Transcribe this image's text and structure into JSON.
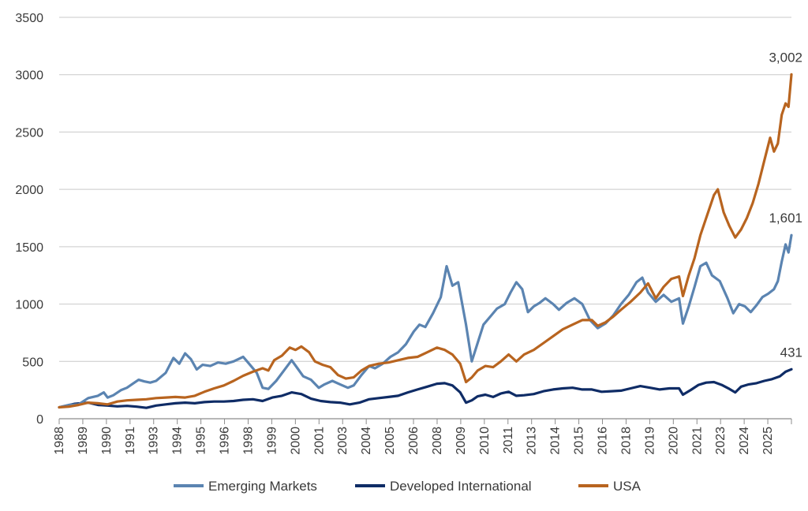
{
  "chart_data": {
    "type": "line",
    "title": "",
    "xlabel": "",
    "ylabel": "",
    "ylim": [
      0,
      3500
    ],
    "y_ticks": [
      0,
      500,
      1000,
      1500,
      2000,
      2500,
      3000,
      3500
    ],
    "x_tick_labels": [
      "1988",
      "1989",
      "1990",
      "1991",
      "1993",
      "1994",
      "1995",
      "1996",
      "1998",
      "1999",
      "2000",
      "2001",
      "2003",
      "2004",
      "2005",
      "2006",
      "2008",
      "2009",
      "2010",
      "2011",
      "2013",
      "2014",
      "2015",
      "2016",
      "2018",
      "2019",
      "2020",
      "2021",
      "2023",
      "2024",
      "2025"
    ],
    "x_range": [
      1988.0,
      2025.8
    ],
    "grid": true,
    "legend_position": "bottom",
    "series": [
      {
        "name": "Emerging Markets",
        "color": "#5b84b1",
        "end_label": "1,601",
        "points": [
          [
            1988.0,
            100
          ],
          [
            1988.5,
            120
          ],
          [
            1989.0,
            125
          ],
          [
            1989.5,
            180
          ],
          [
            1990.0,
            200
          ],
          [
            1990.3,
            230
          ],
          [
            1990.5,
            185
          ],
          [
            1990.8,
            205
          ],
          [
            1991.2,
            250
          ],
          [
            1991.5,
            270
          ],
          [
            1991.8,
            305
          ],
          [
            1992.1,
            340
          ],
          [
            1992.4,
            325
          ],
          [
            1992.7,
            315
          ],
          [
            1993.0,
            330
          ],
          [
            1993.5,
            400
          ],
          [
            1993.9,
            530
          ],
          [
            1994.2,
            480
          ],
          [
            1994.5,
            570
          ],
          [
            1994.8,
            520
          ],
          [
            1995.1,
            430
          ],
          [
            1995.4,
            470
          ],
          [
            1995.8,
            460
          ],
          [
            1996.2,
            490
          ],
          [
            1996.6,
            480
          ],
          [
            1997.0,
            500
          ],
          [
            1997.5,
            540
          ],
          [
            1997.8,
            480
          ],
          [
            1998.2,
            400
          ],
          [
            1998.5,
            270
          ],
          [
            1998.8,
            260
          ],
          [
            1999.2,
            330
          ],
          [
            1999.6,
            420
          ],
          [
            2000.0,
            510
          ],
          [
            2000.3,
            440
          ],
          [
            2000.6,
            370
          ],
          [
            2001.0,
            340
          ],
          [
            2001.4,
            270
          ],
          [
            2001.7,
            300
          ],
          [
            2002.1,
            330
          ],
          [
            2002.5,
            300
          ],
          [
            2002.9,
            270
          ],
          [
            2003.2,
            290
          ],
          [
            2003.6,
            380
          ],
          [
            2004.0,
            460
          ],
          [
            2004.3,
            440
          ],
          [
            2004.7,
            480
          ],
          [
            2005.1,
            540
          ],
          [
            2005.5,
            580
          ],
          [
            2005.9,
            650
          ],
          [
            2006.3,
            760
          ],
          [
            2006.6,
            820
          ],
          [
            2006.9,
            800
          ],
          [
            2007.3,
            920
          ],
          [
            2007.7,
            1060
          ],
          [
            2008.0,
            1330
          ],
          [
            2008.3,
            1160
          ],
          [
            2008.6,
            1190
          ],
          [
            2009.0,
            820
          ],
          [
            2009.3,
            500
          ],
          [
            2009.6,
            660
          ],
          [
            2009.9,
            820
          ],
          [
            2010.3,
            900
          ],
          [
            2010.6,
            960
          ],
          [
            2011.0,
            1000
          ],
          [
            2011.3,
            1100
          ],
          [
            2011.6,
            1190
          ],
          [
            2011.9,
            1130
          ],
          [
            2012.2,
            930
          ],
          [
            2012.5,
            980
          ],
          [
            2012.8,
            1010
          ],
          [
            2013.1,
            1050
          ],
          [
            2013.5,
            1000
          ],
          [
            2013.8,
            950
          ],
          [
            2014.2,
            1010
          ],
          [
            2014.6,
            1050
          ],
          [
            2015.0,
            1000
          ],
          [
            2015.4,
            860
          ],
          [
            2015.8,
            790
          ],
          [
            2016.2,
            830
          ],
          [
            2016.6,
            900
          ],
          [
            2017.0,
            1000
          ],
          [
            2017.4,
            1080
          ],
          [
            2017.8,
            1190
          ],
          [
            2018.1,
            1230
          ],
          [
            2018.4,
            1100
          ],
          [
            2018.8,
            1020
          ],
          [
            2019.2,
            1080
          ],
          [
            2019.6,
            1020
          ],
          [
            2020.0,
            1050
          ],
          [
            2020.2,
            830
          ],
          [
            2020.5,
            980
          ],
          [
            2020.8,
            1150
          ],
          [
            2021.1,
            1330
          ],
          [
            2021.4,
            1360
          ],
          [
            2021.7,
            1250
          ],
          [
            2022.1,
            1200
          ],
          [
            2022.5,
            1050
          ],
          [
            2022.8,
            920
          ],
          [
            2023.1,
            1000
          ],
          [
            2023.4,
            980
          ],
          [
            2023.7,
            930
          ],
          [
            2024.0,
            990
          ],
          [
            2024.3,
            1060
          ],
          [
            2024.6,
            1090
          ],
          [
            2024.9,
            1130
          ],
          [
            2025.1,
            1200
          ],
          [
            2025.3,
            1370
          ],
          [
            2025.5,
            1520
          ],
          [
            2025.65,
            1450
          ],
          [
            2025.8,
            1601
          ]
        ]
      },
      {
        "name": "Developed International",
        "color": "#0f2c66",
        "end_label": "431",
        "points": [
          [
            1988.0,
            100
          ],
          [
            1988.8,
            130
          ],
          [
            1989.5,
            140
          ],
          [
            1990.0,
            120
          ],
          [
            1990.5,
            115
          ],
          [
            1991.0,
            108
          ],
          [
            1991.5,
            112
          ],
          [
            1992.0,
            105
          ],
          [
            1992.5,
            95
          ],
          [
            1993.0,
            115
          ],
          [
            1993.5,
            125
          ],
          [
            1994.0,
            135
          ],
          [
            1994.5,
            140
          ],
          [
            1995.0,
            135
          ],
          [
            1995.5,
            145
          ],
          [
            1996.0,
            150
          ],
          [
            1996.5,
            150
          ],
          [
            1997.0,
            155
          ],
          [
            1997.5,
            165
          ],
          [
            1998.0,
            170
          ],
          [
            1998.5,
            155
          ],
          [
            1999.0,
            185
          ],
          [
            1999.5,
            200
          ],
          [
            2000.0,
            230
          ],
          [
            2000.5,
            215
          ],
          [
            2001.0,
            175
          ],
          [
            2001.5,
            155
          ],
          [
            2002.0,
            145
          ],
          [
            2002.5,
            140
          ],
          [
            2003.0,
            125
          ],
          [
            2003.5,
            140
          ],
          [
            2004.0,
            170
          ],
          [
            2004.5,
            180
          ],
          [
            2005.0,
            190
          ],
          [
            2005.5,
            200
          ],
          [
            2006.0,
            230
          ],
          [
            2006.5,
            255
          ],
          [
            2007.0,
            280
          ],
          [
            2007.5,
            305
          ],
          [
            2007.9,
            310
          ],
          [
            2008.3,
            290
          ],
          [
            2008.7,
            230
          ],
          [
            2009.0,
            140
          ],
          [
            2009.3,
            160
          ],
          [
            2009.6,
            195
          ],
          [
            2010.0,
            210
          ],
          [
            2010.4,
            190
          ],
          [
            2010.8,
            220
          ],
          [
            2011.2,
            235
          ],
          [
            2011.6,
            200
          ],
          [
            2012.0,
            205
          ],
          [
            2012.5,
            215
          ],
          [
            2013.0,
            240
          ],
          [
            2013.5,
            255
          ],
          [
            2014.0,
            265
          ],
          [
            2014.5,
            270
          ],
          [
            2015.0,
            255
          ],
          [
            2015.5,
            255
          ],
          [
            2016.0,
            235
          ],
          [
            2016.5,
            240
          ],
          [
            2017.0,
            245
          ],
          [
            2017.5,
            265
          ],
          [
            2018.0,
            285
          ],
          [
            2018.5,
            270
          ],
          [
            2019.0,
            255
          ],
          [
            2019.5,
            265
          ],
          [
            2020.0,
            265
          ],
          [
            2020.2,
            210
          ],
          [
            2020.6,
            250
          ],
          [
            2021.0,
            295
          ],
          [
            2021.4,
            315
          ],
          [
            2021.8,
            320
          ],
          [
            2022.2,
            295
          ],
          [
            2022.6,
            260
          ],
          [
            2022.9,
            230
          ],
          [
            2023.2,
            280
          ],
          [
            2023.6,
            300
          ],
          [
            2024.0,
            310
          ],
          [
            2024.4,
            330
          ],
          [
            2024.8,
            345
          ],
          [
            2025.2,
            370
          ],
          [
            2025.5,
            410
          ],
          [
            2025.8,
            431
          ]
        ]
      },
      {
        "name": "USA",
        "color": "#b8641f",
        "end_label": "3,002",
        "points": [
          [
            1988.0,
            100
          ],
          [
            1988.5,
            105
          ],
          [
            1989.0,
            120
          ],
          [
            1989.5,
            140
          ],
          [
            1990.0,
            135
          ],
          [
            1990.5,
            125
          ],
          [
            1991.0,
            150
          ],
          [
            1991.5,
            160
          ],
          [
            1992.0,
            165
          ],
          [
            1992.5,
            170
          ],
          [
            1993.0,
            180
          ],
          [
            1993.5,
            185
          ],
          [
            1994.0,
            190
          ],
          [
            1994.5,
            185
          ],
          [
            1995.0,
            200
          ],
          [
            1995.5,
            235
          ],
          [
            1996.0,
            265
          ],
          [
            1996.5,
            290
          ],
          [
            1997.0,
            330
          ],
          [
            1997.5,
            375
          ],
          [
            1998.0,
            410
          ],
          [
            1998.5,
            440
          ],
          [
            1998.8,
            420
          ],
          [
            1999.1,
            510
          ],
          [
            1999.5,
            550
          ],
          [
            1999.9,
            620
          ],
          [
            2000.2,
            600
          ],
          [
            2000.5,
            630
          ],
          [
            2000.9,
            580
          ],
          [
            2001.2,
            500
          ],
          [
            2001.6,
            470
          ],
          [
            2002.0,
            450
          ],
          [
            2002.4,
            380
          ],
          [
            2002.8,
            350
          ],
          [
            2003.2,
            360
          ],
          [
            2003.6,
            420
          ],
          [
            2004.0,
            460
          ],
          [
            2004.5,
            480
          ],
          [
            2005.0,
            490
          ],
          [
            2005.5,
            510
          ],
          [
            2006.0,
            530
          ],
          [
            2006.5,
            540
          ],
          [
            2007.0,
            580
          ],
          [
            2007.5,
            620
          ],
          [
            2007.9,
            600
          ],
          [
            2008.3,
            560
          ],
          [
            2008.7,
            480
          ],
          [
            2009.0,
            320
          ],
          [
            2009.3,
            360
          ],
          [
            2009.6,
            420
          ],
          [
            2010.0,
            460
          ],
          [
            2010.4,
            450
          ],
          [
            2010.8,
            500
          ],
          [
            2011.2,
            560
          ],
          [
            2011.6,
            500
          ],
          [
            2012.0,
            560
          ],
          [
            2012.5,
            600
          ],
          [
            2013.0,
            660
          ],
          [
            2013.5,
            720
          ],
          [
            2014.0,
            780
          ],
          [
            2014.5,
            820
          ],
          [
            2015.0,
            860
          ],
          [
            2015.5,
            860
          ],
          [
            2015.8,
            810
          ],
          [
            2016.2,
            840
          ],
          [
            2016.6,
            890
          ],
          [
            2017.0,
            950
          ],
          [
            2017.5,
            1020
          ],
          [
            2018.0,
            1100
          ],
          [
            2018.4,
            1180
          ],
          [
            2018.8,
            1050
          ],
          [
            2019.2,
            1150
          ],
          [
            2019.6,
            1220
          ],
          [
            2020.0,
            1240
          ],
          [
            2020.2,
            1070
          ],
          [
            2020.5,
            1250
          ],
          [
            2020.8,
            1400
          ],
          [
            2021.1,
            1600
          ],
          [
            2021.5,
            1800
          ],
          [
            2021.8,
            1950
          ],
          [
            2022.0,
            2000
          ],
          [
            2022.3,
            1800
          ],
          [
            2022.6,
            1680
          ],
          [
            2022.9,
            1580
          ],
          [
            2023.2,
            1650
          ],
          [
            2023.5,
            1750
          ],
          [
            2023.8,
            1880
          ],
          [
            2024.1,
            2050
          ],
          [
            2024.4,
            2250
          ],
          [
            2024.7,
            2450
          ],
          [
            2024.9,
            2330
          ],
          [
            2025.1,
            2400
          ],
          [
            2025.3,
            2650
          ],
          [
            2025.5,
            2750
          ],
          [
            2025.65,
            2720
          ],
          [
            2025.8,
            3002
          ]
        ]
      }
    ]
  }
}
